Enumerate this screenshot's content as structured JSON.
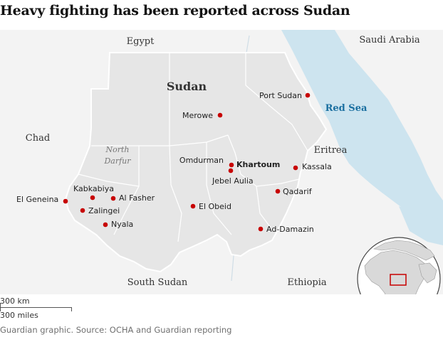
{
  "title": "Heavy fighting has been reported across Sudan",
  "labels": {
    "egypt": "Egypt",
    "saudi_arabia": "Saudi Arabia",
    "sudan": "Sudan",
    "chad": "Chad",
    "eritrea": "Eritrea",
    "south_sudan": "South Sudan",
    "ethiopia": "Ethiopia",
    "red_sea": "Red Sea",
    "north_darfur_line1": "North",
    "north_darfur_line2": "Darfur"
  },
  "cities": [
    {
      "name": "Port Sudan",
      "bold": false
    },
    {
      "name": "Merowe",
      "bold": false
    },
    {
      "name": "Omdurman",
      "bold": false
    },
    {
      "name": "Khartoum",
      "bold": true
    },
    {
      "name": "Jebel Aulia",
      "bold": false
    },
    {
      "name": "Kassala",
      "bold": false
    },
    {
      "name": "Qadarif",
      "bold": false
    },
    {
      "name": "Ad-Damazin",
      "bold": false
    },
    {
      "name": "El Obeid",
      "bold": false
    },
    {
      "name": "El Geneina",
      "bold": false
    },
    {
      "name": "Kabkabiya",
      "bold": false
    },
    {
      "name": "Al Fasher",
      "bold": false
    },
    {
      "name": "Zalingei",
      "bold": false
    },
    {
      "name": "Nyala",
      "bold": false
    }
  ],
  "scale": {
    "km": "300 km",
    "miles": "300 miles"
  },
  "source": "Guardian graphic. Source: OCHA and Guardian reporting",
  "colors": {
    "sudan_fill": "#e6e6e6",
    "land_fill": "#f3f3f3",
    "water": "#cde4ef",
    "city_dot": "#c70000",
    "border": "#ffffff"
  }
}
